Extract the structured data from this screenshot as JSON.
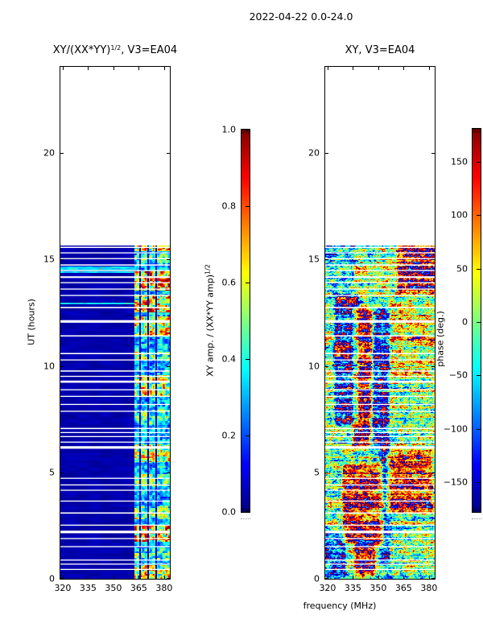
{
  "figure": {
    "title": "2022-04-22 0.0-24.0",
    "background": "#ffffff",
    "frame_color": "#000000"
  },
  "axis_labels": {
    "ylabel": "UT (hours)",
    "xlabel": "frequency (MHz)"
  },
  "chart_data": [
    {
      "type": "heatmap",
      "kind": "amplitude",
      "title_main": "XY/(XX*YY)",
      "title_sup": "1/2",
      "title_rest": ", V3=EA04",
      "colormap": "jet",
      "vmin": 0.0,
      "vmax": 1.0,
      "xlim": [
        318.6,
        383.4
      ],
      "ylim": [
        0,
        24.05
      ],
      "x_ticks": [
        {
          "v": 320,
          "label": "320"
        },
        {
          "v": 335,
          "label": "335"
        },
        {
          "v": 350,
          "label": "350"
        },
        {
          "v": 365,
          "label": "365"
        },
        {
          "v": 380,
          "label": "380"
        }
      ],
      "y_ticks": [
        {
          "v": 0,
          "label": "0"
        },
        {
          "v": 5,
          "label": "5"
        },
        {
          "v": 10,
          "label": "10"
        },
        {
          "v": 15,
          "label": "15"
        },
        {
          "v": 20,
          "label": "20"
        }
      ],
      "data_time_range": [
        0,
        15.66
      ],
      "background_level": 0.02,
      "background_noise": 0.05,
      "band": {
        "f_start": 362.2,
        "f_end": 383.4,
        "default_intensity": 0.4,
        "separators_mhz": [
          365.9,
          370.6,
          375.4
        ],
        "separator_half_width_mhz": 0.45,
        "separator_level": 0.07
      },
      "hot_row_clusters": [
        [
          0.0,
          0.65,
          0.75
        ],
        [
          0.9,
          1.45,
          0.55
        ],
        [
          1.75,
          2.55,
          0.85
        ],
        [
          2.8,
          3.45,
          0.6
        ],
        [
          4.35,
          4.95,
          0.6
        ],
        [
          5.5,
          6.35,
          0.7
        ],
        [
          7.25,
          7.95,
          0.55
        ],
        [
          8.55,
          9.6,
          0.75
        ],
        [
          10.25,
          10.7,
          0.6
        ],
        [
          11.45,
          12.35,
          0.8
        ],
        [
          12.55,
          13.35,
          0.85
        ],
        [
          13.55,
          14.45,
          0.92
        ],
        [
          14.85,
          15.25,
          0.55
        ],
        [
          15.4,
          15.66,
          0.75
        ]
      ],
      "bright_rows_t": [
        12.95,
        14.42,
        14.55,
        14.65
      ],
      "gap_rows_t": [
        [
          0.44,
          0.05
        ],
        [
          0.69,
          0.05
        ],
        [
          0.88,
          0.05
        ],
        [
          1.51,
          0.05
        ],
        [
          1.89,
          0.05
        ],
        [
          2.2,
          0.12
        ],
        [
          2.52,
          0.05
        ],
        [
          3.09,
          0.06
        ],
        [
          3.65,
          0.05
        ],
        [
          4.16,
          0.05
        ],
        [
          4.41,
          0.05
        ],
        [
          4.72,
          0.05
        ],
        [
          6.17,
          0.12
        ],
        [
          6.42,
          0.05
        ],
        [
          6.68,
          0.05
        ],
        [
          6.87,
          0.05
        ],
        [
          7.06,
          0.06
        ],
        [
          7.87,
          0.05
        ],
        [
          8.19,
          0.05
        ],
        [
          8.57,
          0.05
        ],
        [
          8.88,
          0.05
        ],
        [
          9.26,
          0.1
        ],
        [
          9.51,
          0.05
        ],
        [
          9.76,
          0.06
        ],
        [
          10.28,
          0.05
        ],
        [
          10.58,
          0.06
        ],
        [
          11.41,
          0.06
        ],
        [
          12.09,
          0.12
        ],
        [
          12.74,
          0.06
        ],
        [
          13.31,
          0.05
        ],
        [
          13.61,
          0.05
        ],
        [
          13.91,
          0.05
        ],
        [
          14.17,
          0.08
        ],
        [
          14.48,
          0.05
        ],
        [
          14.74,
          0.06
        ],
        [
          15.04,
          0.05
        ],
        [
          15.31,
          0.05
        ],
        [
          15.57,
          0.06
        ]
      ]
    },
    {
      "type": "heatmap",
      "kind": "phase",
      "title": "XY, V3=EA04",
      "colormap": "jet",
      "vmin": -178,
      "vmax": 181,
      "xlim": [
        318.6,
        383.4
      ],
      "ylim": [
        0,
        24.05
      ],
      "x_ticks": [
        {
          "v": 320,
          "label": "320"
        },
        {
          "v": 335,
          "label": "335"
        },
        {
          "v": 350,
          "label": "350"
        },
        {
          "v": 365,
          "label": "365"
        },
        {
          "v": 380,
          "label": "380"
        }
      ],
      "y_ticks": [
        {
          "v": 0,
          "label": "0"
        },
        {
          "v": 5,
          "label": "5"
        },
        {
          "v": 10,
          "label": "10"
        },
        {
          "v": 15,
          "label": "15"
        },
        {
          "v": 20,
          "label": "20"
        }
      ],
      "data_time_range": [
        0,
        15.66
      ],
      "phase_features": [
        [
          336,
          346,
          6.3,
          12.6,
          160
        ],
        [
          346,
          355,
          6.2,
          9.2,
          -130
        ],
        [
          325,
          337,
          7.4,
          13.2,
          -140
        ],
        [
          330,
          352,
          1.8,
          5.2,
          150
        ],
        [
          356,
          381,
          3.2,
          5.9,
          130
        ],
        [
          352,
          356,
          0.8,
          6.2,
          -110
        ],
        [
          319,
          330,
          0.3,
          2.1,
          -130
        ],
        [
          357,
          383,
          9.8,
          13.0,
          60
        ],
        [
          337,
          347,
          0.2,
          1.6,
          150
        ],
        [
          320,
          335,
          13.4,
          15.7,
          -60
        ],
        [
          362,
          383,
          13.6,
          15.7,
          150
        ],
        [
          347,
          356,
          9.5,
          12.5,
          -120
        ]
      ],
      "gap_rows_t": [
        [
          0.44,
          0.05
        ],
        [
          0.69,
          0.05
        ],
        [
          0.88,
          0.05
        ],
        [
          1.51,
          0.05
        ],
        [
          1.89,
          0.05
        ],
        [
          2.2,
          0.12
        ],
        [
          2.52,
          0.05
        ],
        [
          3.09,
          0.06
        ],
        [
          3.65,
          0.05
        ],
        [
          4.16,
          0.05
        ],
        [
          4.41,
          0.05
        ],
        [
          4.72,
          0.05
        ],
        [
          6.17,
          0.12
        ],
        [
          6.42,
          0.05
        ],
        [
          6.68,
          0.05
        ],
        [
          6.87,
          0.05
        ],
        [
          7.06,
          0.06
        ],
        [
          7.87,
          0.05
        ],
        [
          8.19,
          0.05
        ],
        [
          8.57,
          0.05
        ],
        [
          8.88,
          0.05
        ],
        [
          9.26,
          0.1
        ],
        [
          9.51,
          0.05
        ],
        [
          9.76,
          0.06
        ],
        [
          10.28,
          0.05
        ],
        [
          10.58,
          0.06
        ],
        [
          11.41,
          0.06
        ],
        [
          12.09,
          0.12
        ],
        [
          12.74,
          0.06
        ],
        [
          13.31,
          0.05
        ],
        [
          13.61,
          0.05
        ],
        [
          13.91,
          0.05
        ],
        [
          14.17,
          0.08
        ],
        [
          14.48,
          0.05
        ],
        [
          14.74,
          0.06
        ],
        [
          15.04,
          0.05
        ],
        [
          15.31,
          0.05
        ],
        [
          15.57,
          0.06
        ]
      ]
    }
  ],
  "colorbars": [
    {
      "label_main": "XY amp. / (XX*YY amp)",
      "label_sup": "1/2",
      "vmin": 0.0,
      "vmax": 1.0,
      "ticks": [
        {
          "v": 1.0,
          "label": "1.0"
        },
        {
          "v": 0.8,
          "label": "0.8"
        },
        {
          "v": 0.6,
          "label": "0.6"
        },
        {
          "v": 0.4,
          "label": "0.4"
        },
        {
          "v": 0.2,
          "label": "0.2"
        },
        {
          "v": 0.0,
          "label": "0.0"
        }
      ]
    },
    {
      "label": "phase (deg.)",
      "vmin": -178,
      "vmax": 181,
      "ticks": [
        {
          "v": 150,
          "label": "150"
        },
        {
          "v": 100,
          "label": "100"
        },
        {
          "v": 50,
          "label": "50"
        },
        {
          "v": 0,
          "label": "0"
        },
        {
          "v": -50,
          "label": "−50"
        },
        {
          "v": -100,
          "label": "−100"
        },
        {
          "v": -150,
          "label": "−150"
        }
      ]
    }
  ]
}
